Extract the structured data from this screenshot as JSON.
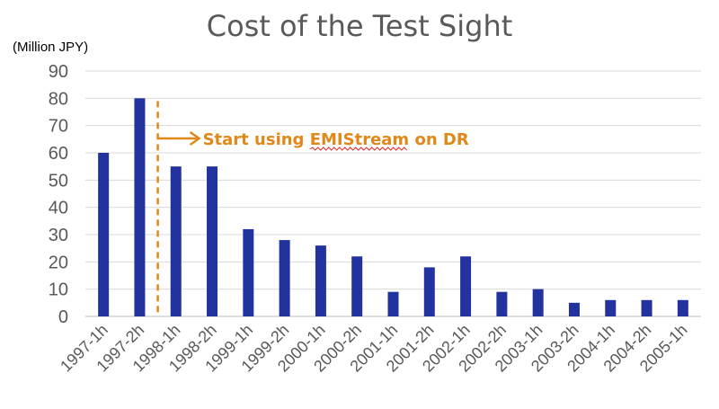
{
  "chart_data": {
    "type": "bar",
    "title": "Cost of the Test Sight",
    "ylabel": "(Million JPY)",
    "xlabel": "",
    "ylim": [
      0,
      90
    ],
    "yticks": [
      0,
      10,
      20,
      30,
      40,
      50,
      60,
      70,
      80,
      90
    ],
    "grid": true,
    "categories": [
      "1997-1h",
      "1997-2h",
      "1998-1h",
      "1998-2h",
      "1999-1h",
      "1999-2h",
      "2000-1h",
      "2000-2h",
      "2001-1h",
      "2001-2h",
      "2002-1h",
      "2002-2h",
      "2003-1h",
      "2003-2h",
      "2004-1h",
      "2004-2h",
      "2005-1h"
    ],
    "values": [
      60,
      80,
      55,
      55,
      32,
      28,
      26,
      22,
      9,
      18,
      22,
      9,
      10,
      5,
      6,
      6,
      6
    ],
    "bar_color": "#2233A0",
    "annotation": {
      "text_prefix": "Start using ",
      "text_product": "EMIStream",
      "text_suffix": " on DR",
      "color": "#E0891A",
      "after_category": "1997-2h"
    }
  }
}
